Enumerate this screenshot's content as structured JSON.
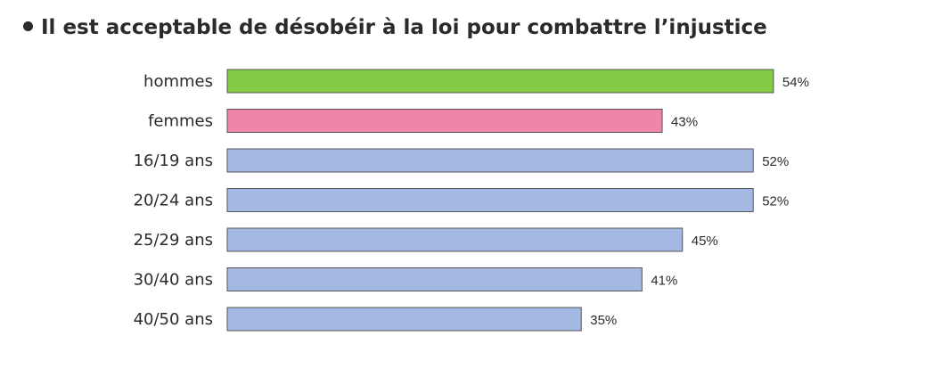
{
  "chart_data": {
    "type": "bar",
    "orientation": "horizontal",
    "title": "Il est acceptable de désobéir à la loi pour combattre l’injustice",
    "categories": [
      "hommes",
      "femmes",
      "16/19 ans",
      "20/24 ans",
      "25/29 ans",
      "30/40 ans",
      "40/50 ans"
    ],
    "values": [
      54,
      43,
      52,
      52,
      45,
      41,
      35
    ],
    "value_labels": [
      "54%",
      "43%",
      "52%",
      "52%",
      "45%",
      "41%",
      "35%"
    ],
    "colors": [
      "#84cc45",
      "#ef85aa",
      "#a3b9e3",
      "#a3b9e3",
      "#a3b9e3",
      "#a3b9e3",
      "#a3b9e3"
    ],
    "xlim": [
      0,
      100
    ],
    "grid": false,
    "legend": "none"
  }
}
